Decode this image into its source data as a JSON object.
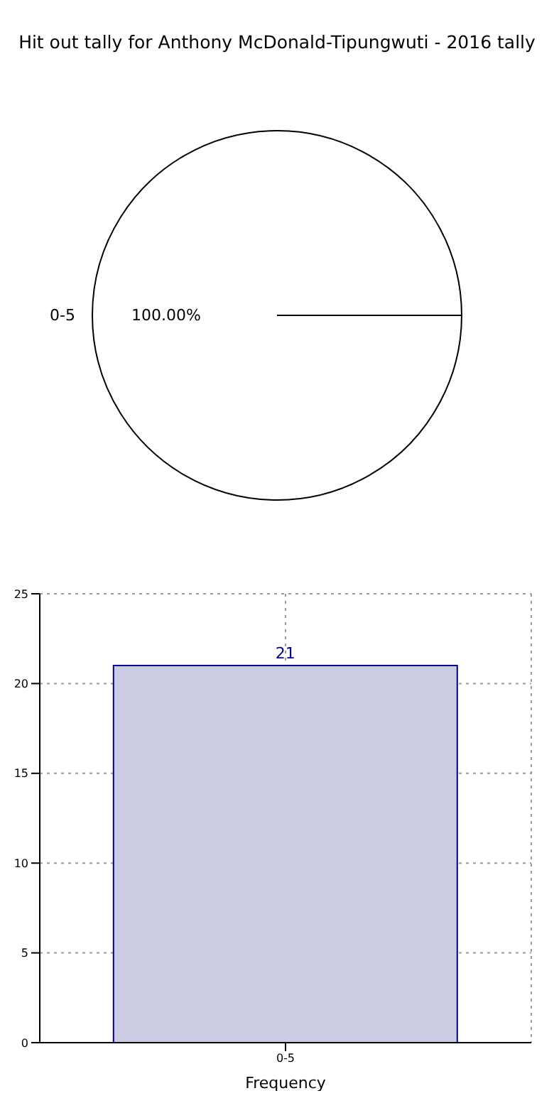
{
  "chart_data": [
    {
      "type": "pie",
      "title": "Hit out tally for Anthony McDonald-Tipungwuti - 2016 tally",
      "categories": [
        "0-5"
      ],
      "values": [
        100
      ],
      "colors": [
        "#ffffff"
      ],
      "value_labels": [
        "100.00%"
      ]
    },
    {
      "type": "bar",
      "categories": [
        "0-5"
      ],
      "values": [
        21
      ],
      "color": "#cbcce4",
      "xlabel": "Frequency",
      "ylim": [
        0,
        25
      ],
      "yticks": [
        0,
        5,
        10,
        15,
        20,
        25
      ],
      "grid": true,
      "data_labels": true
    }
  ]
}
